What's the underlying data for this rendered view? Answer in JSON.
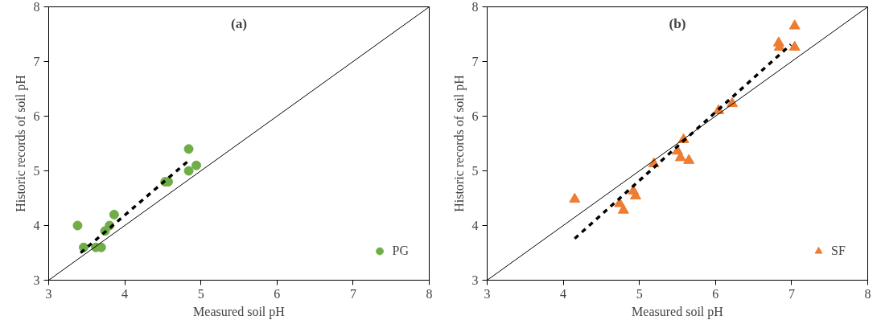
{
  "chart_data": [
    {
      "type": "scatter",
      "title": "(a)",
      "xlabel": "Measured soil pH",
      "ylabel": "Historic records of soil pH",
      "xlim": [
        3,
        8
      ],
      "ylim": [
        3,
        8
      ],
      "xticks": [
        3,
        4,
        5,
        6,
        7,
        8
      ],
      "yticks": [
        3,
        4,
        5,
        6,
        7,
        8
      ],
      "grid": false,
      "legend": "bottom right",
      "marker": "circle",
      "series": [
        {
          "name": "PG",
          "color": "#70ad47",
          "x": [
            3.38,
            3.46,
            3.62,
            3.69,
            3.74,
            3.8,
            3.86,
            4.53,
            4.57,
            4.84,
            4.84,
            4.94
          ],
          "values": [
            4.0,
            3.6,
            3.6,
            3.6,
            3.9,
            4.0,
            4.2,
            4.8,
            4.8,
            5.4,
            5.0,
            5.1
          ]
        },
        {
          "type": "line",
          "marker": "none",
          "color": "#000000",
          "line_style": "solid",
          "x": [
            3,
            8
          ],
          "values": [
            3,
            8
          ]
        },
        {
          "type": "line",
          "marker": "none",
          "color": "#000000",
          "line_style": "dashed",
          "x": [
            3.42,
            4.85
          ],
          "values": [
            3.5,
            5.2
          ]
        }
      ]
    },
    {
      "type": "scatter",
      "title": "(b)",
      "xlabel": "Measured soil pH",
      "ylabel": "Historic records of soil pH",
      "xlim": [
        3,
        8
      ],
      "ylim": [
        3,
        8
      ],
      "xticks": [
        3,
        4,
        5,
        6,
        7,
        8
      ],
      "yticks": [
        3,
        4,
        5,
        6,
        7,
        8
      ],
      "grid": false,
      "legend": "bottom right",
      "marker": "triangle",
      "series": [
        {
          "name": "SF",
          "color": "#ed7d31",
          "x": [
            4.15,
            4.74,
            4.79,
            4.92,
            4.95,
            5.19,
            5.5,
            5.54,
            5.65,
            5.58,
            6.04,
            6.22,
            6.83,
            6.84,
            7.04,
            7.04
          ],
          "values": [
            4.48,
            4.4,
            4.28,
            4.63,
            4.54,
            5.13,
            5.36,
            5.24,
            5.19,
            5.57,
            6.1,
            6.23,
            7.34,
            7.26,
            7.26,
            7.65
          ]
        },
        {
          "type": "line",
          "marker": "none",
          "color": "#000000",
          "line_style": "solid",
          "x": [
            3,
            8
          ],
          "values": [
            3,
            8
          ]
        },
        {
          "type": "line",
          "marker": "none",
          "color": "#000000",
          "line_style": "dashed",
          "x": [
            4.15,
            6.99
          ],
          "values": [
            3.76,
            7.31
          ]
        }
      ]
    }
  ]
}
